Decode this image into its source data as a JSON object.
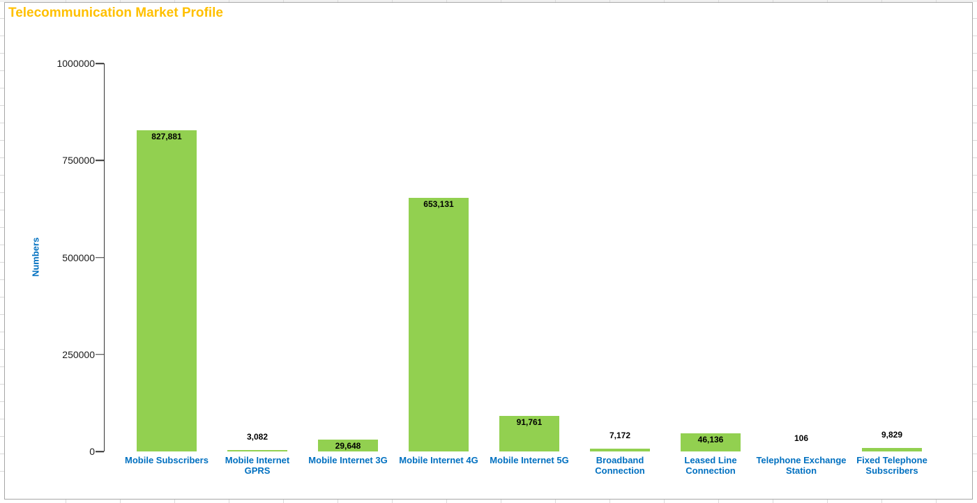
{
  "chart_data": {
    "type": "bar",
    "title": "Telecommunication Market Profile",
    "xlabel": "",
    "ylabel": "Numbers",
    "ylim": [
      0,
      1000000
    ],
    "ytick_labels": [
      "1000000",
      "750000",
      "500000",
      "250000",
      "0"
    ],
    "grid": false,
    "legend": false,
    "colors": {
      "bar": "#92D050",
      "title": "#FFC000",
      "category_labels": "#0070C0",
      "axis": "#333333",
      "value_labels": "#000000",
      "worksheet_gridlines": "#D9D9D9",
      "chart_border": "#A6A6A6"
    },
    "categories": [
      "Mobile Subscribers",
      "Mobile Internet GPRS",
      "Mobile Internet 3G",
      "Mobile Internet 4G",
      "Mobile Internet 5G",
      "Broadband Connection",
      "Leased Line Connection",
      "Telephone Exchange Station",
      "Fixed Telephone Subscribers"
    ],
    "values": [
      827881,
      3082,
      29648,
      653131,
      91761,
      7172,
      46136,
      106,
      9829
    ],
    "points": [
      {
        "label": "Mobile Subscribers",
        "value": 827881,
        "value_label": "827,881"
      },
      {
        "label": "Mobile Internet\nGPRS",
        "value": 3082,
        "value_label": "3,082"
      },
      {
        "label": "Mobile Internet 3G",
        "value": 29648,
        "value_label": "29,648"
      },
      {
        "label": "Mobile Internet 4G",
        "value": 653131,
        "value_label": "653,131"
      },
      {
        "label": "Mobile Internet 5G",
        "value": 91761,
        "value_label": "91,761"
      },
      {
        "label": "Broadband\nConnection",
        "value": 7172,
        "value_label": "7,172"
      },
      {
        "label": "Leased Line\nConnection",
        "value": 46136,
        "value_label": "46,136"
      },
      {
        "label": "Telephone Exchange\nStation",
        "value": 106,
        "value_label": "106"
      },
      {
        "label": "Fixed Telephone\nSubscribers",
        "value": 9829,
        "value_label": "9,829"
      }
    ]
  }
}
